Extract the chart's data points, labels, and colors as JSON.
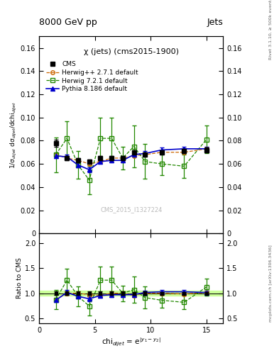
{
  "title_top": "8000 GeV pp",
  "title_right": "Jets",
  "plot_title": "χ (jets) (cms2015-1900)",
  "watermark": "CMS_2015_I1327224",
  "right_label_top": "Rivet 3.1.10, ≥ 500k events",
  "right_label_bottom": "mcplots.cern.ch [arXiv:1306.3436]",
  "xlabel": "chi$_{dijet}$ = e$^{|y_1 - y_2|}$",
  "ylabel_main": "1/σ$_{dijet}$ dσ$_{dijet}$/dchi$_{dijet}$",
  "ylabel_ratio": "Ratio to CMS",
  "xlim": [
    0,
    16.5
  ],
  "ylim_main": [
    0,
    0.17
  ],
  "ylim_ratio": [
    0.4,
    2.2
  ],
  "yticks_main": [
    0.0,
    0.02,
    0.04,
    0.06,
    0.08,
    0.1,
    0.12,
    0.14,
    0.16
  ],
  "yticks_ratio": [
    0.5,
    1.0,
    1.5,
    2.0
  ],
  "xticks": [
    0,
    5,
    10,
    15
  ],
  "cms_x": [
    1.5,
    2.5,
    3.5,
    4.5,
    5.5,
    6.5,
    7.5,
    8.5,
    9.5,
    11.0,
    13.0,
    15.0
  ],
  "cms_y": [
    0.078,
    0.065,
    0.063,
    0.062,
    0.065,
    0.065,
    0.065,
    0.07,
    0.068,
    0.07,
    0.071,
    0.072
  ],
  "cms_yerr": [
    0.003,
    0.002,
    0.002,
    0.002,
    0.002,
    0.002,
    0.002,
    0.002,
    0.002,
    0.002,
    0.002,
    0.002
  ],
  "herwig1_x": [
    1.5,
    2.5,
    3.5,
    4.5,
    5.5,
    6.5,
    7.5,
    8.5,
    9.5,
    11.0,
    13.0,
    15.0
  ],
  "herwig1_y": [
    0.068,
    0.065,
    0.063,
    0.06,
    0.062,
    0.065,
    0.065,
    0.067,
    0.068,
    0.07,
    0.07,
    0.073
  ],
  "herwig1_yerr": [
    0.001,
    0.001,
    0.001,
    0.001,
    0.001,
    0.001,
    0.001,
    0.001,
    0.001,
    0.001,
    0.001,
    0.001
  ],
  "herwig2_x": [
    1.5,
    2.5,
    3.5,
    4.5,
    5.5,
    6.5,
    7.5,
    8.5,
    9.5,
    11.0,
    13.0,
    15.0
  ],
  "herwig2_y": [
    0.068,
    0.082,
    0.059,
    0.046,
    0.082,
    0.082,
    0.065,
    0.075,
    0.062,
    0.06,
    0.058,
    0.081
  ],
  "herwig2_yerr": [
    0.015,
    0.015,
    0.012,
    0.012,
    0.018,
    0.018,
    0.01,
    0.018,
    0.015,
    0.01,
    0.01,
    0.012
  ],
  "pythia_x": [
    1.5,
    2.5,
    3.5,
    4.5,
    5.5,
    6.5,
    7.5,
    8.5,
    9.5,
    11.0,
    13.0,
    15.0
  ],
  "pythia_y": [
    0.067,
    0.066,
    0.059,
    0.055,
    0.062,
    0.063,
    0.063,
    0.068,
    0.069,
    0.072,
    0.073,
    0.073
  ],
  "pythia_yerr": [
    0.002,
    0.002,
    0.002,
    0.002,
    0.002,
    0.002,
    0.002,
    0.002,
    0.002,
    0.002,
    0.002,
    0.002
  ],
  "cms_color": "#000000",
  "herwig1_color": "#cc6600",
  "herwig2_color": "#228800",
  "pythia_color": "#0000cc",
  "ratio_band_color": "#ccff99",
  "bg_color": "#ffffff"
}
